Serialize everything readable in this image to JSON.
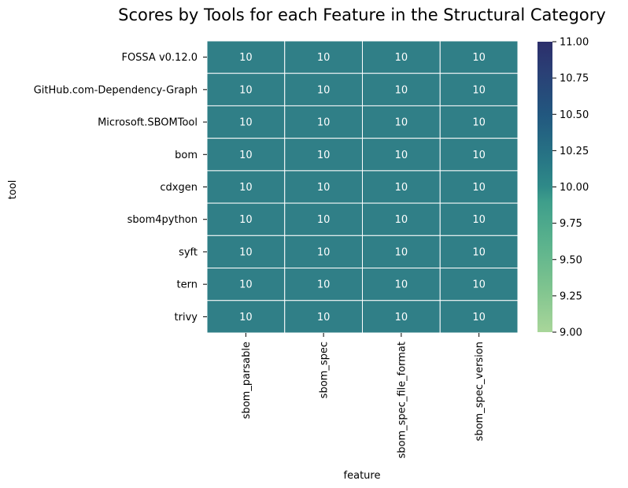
{
  "chart_data": {
    "type": "heatmap",
    "title": "Scores by Tools for each Feature in the Structural Category",
    "xlabel": "feature",
    "ylabel": "tool",
    "x_categories": [
      "sbom_parsable",
      "sbom_spec",
      "sbom_spec_file_format",
      "sbom_spec_version"
    ],
    "y_categories": [
      "FOSSA v0.12.0",
      "GitHub.com-Dependency-Graph",
      "Microsoft.SBOMTool",
      "bom",
      "cdxgen",
      "sbom4python",
      "syft",
      "tern",
      "trivy"
    ],
    "values": [
      [
        10,
        10,
        10,
        10
      ],
      [
        10,
        10,
        10,
        10
      ],
      [
        10,
        10,
        10,
        10
      ],
      [
        10,
        10,
        10,
        10
      ],
      [
        10,
        10,
        10,
        10
      ],
      [
        10,
        10,
        10,
        10
      ],
      [
        10,
        10,
        10,
        10
      ],
      [
        10,
        10,
        10,
        10
      ],
      [
        10,
        10,
        10,
        10
      ]
    ],
    "annotations": true,
    "colormap": "crest",
    "colorbar": {
      "vmin": 9.0,
      "vmax": 11.0,
      "ticks": [
        "9.00",
        "9.25",
        "9.50",
        "9.75",
        "10.00",
        "10.25",
        "10.50",
        "10.75",
        "11.00"
      ],
      "color_low": "#a5d396",
      "color_mid": "#2d8087",
      "color_high": "#2c2e6e"
    },
    "cell_color": "#307f87",
    "cell_text_color": "#ffffff",
    "gridline_color": "#ffffff"
  }
}
